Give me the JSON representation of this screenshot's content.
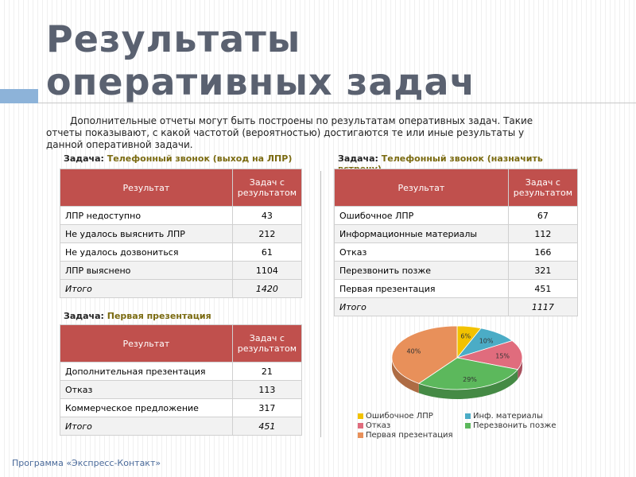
{
  "title": "Результаты оперативных задач",
  "intro": "Дополнительные отчеты могут быть построены по результатам оперативных задач. Такие отчеты показывают, с какой частотой (вероятностью) достигаются те или иные результаты у данной оперативной задачи.",
  "tables": [
    {
      "task_label": "Задача:",
      "task": "Телефонный звонок (выход на ЛПР)",
      "header": [
        "Результат",
        "Задач с результатом"
      ],
      "rows": [
        [
          "ЛПР недоступно",
          43
        ],
        [
          "Не удалось выяснить ЛПР",
          212
        ],
        [
          "Не удалось дозвониться",
          61
        ],
        [
          "ЛПР выяснено",
          1104
        ]
      ],
      "total": [
        "Итого",
        1420
      ]
    },
    {
      "task_label": "Задача:",
      "task": "Телефонный звонок (назначить встречу)",
      "header": [
        "Результат",
        "Задач с результатом"
      ],
      "rows": [
        [
          "Ошибочное ЛПР",
          67
        ],
        [
          "Информационные материалы",
          112
        ],
        [
          "Отказ",
          166
        ],
        [
          "Перезвонить позже",
          321
        ],
        [
          "Первая презентация",
          451
        ]
      ],
      "total": [
        "Итого",
        1117
      ]
    },
    {
      "task_label": "Задача:",
      "task": "Первая презентация",
      "header": [
        "Результат",
        "Задач с результатом"
      ],
      "rows": [
        [
          "Дополнительная презентация",
          21
        ],
        [
          "Отказ",
          113
        ],
        [
          "Коммерческое предложение",
          317
        ]
      ],
      "total": [
        "Итого",
        451
      ]
    }
  ],
  "chart_data": {
    "type": "pie",
    "categories": [
      "Ошибочное ЛПР",
      "Инф. материалы",
      "Отказ",
      "Перезвонить позже",
      "Первая презентация"
    ],
    "values": [
      6,
      10,
      15,
      29,
      40
    ],
    "value_labels": [
      "6%",
      "10%",
      "15%",
      "29%",
      "40%"
    ],
    "colors": [
      "#f2c200",
      "#4bacc6",
      "#e06c7d",
      "#5cb85c",
      "#e8905a"
    ]
  },
  "footer": "Программа «Экспресс-Контакт»"
}
